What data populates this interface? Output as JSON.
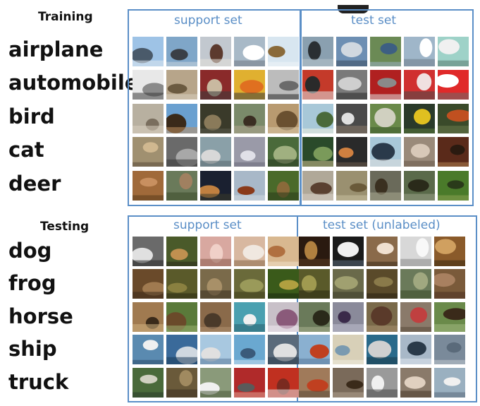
{
  "training": {
    "title": "Training",
    "classes": [
      "airplane",
      "automobile",
      "bird",
      "cat",
      "deer"
    ],
    "support_label": "support set",
    "test_label": "test set"
  },
  "testing": {
    "title": "Testing",
    "classes": [
      "dog",
      "frog",
      "horse",
      "ship",
      "truck"
    ],
    "support_label": "support set",
    "test_label": "test set   (unlabeled)"
  },
  "colors": {
    "box_border": "#5b8fc7",
    "box_label": "#5a8ec6",
    "class_label": "#111111"
  },
  "thumbnail_palettes": {
    "airplane": [
      [
        "#9ec3e6",
        "#4a5a6a",
        "#dfe7ee"
      ],
      [
        "#7fa6c8",
        "#3a3f46",
        "#c9d4dc"
      ],
      [
        "#c2c8cf",
        "#5c3a2e",
        "#e6e2da"
      ],
      [
        "#a8b9c7",
        "#ffffff",
        "#707a85"
      ],
      [
        "#d8e6f0",
        "#8a6a3a",
        "#f0f4f7"
      ],
      [
        "#8aa0b0",
        "#2a2f33",
        "#b8c4cc"
      ],
      [
        "#6d8fb3",
        "#d0d8e0",
        "#3c4e60"
      ],
      [
        "#6b8a55",
        "#3d5f82",
        "#9bb0c4"
      ],
      [
        "#9fb6c9",
        "#ffffff",
        "#6e7c88"
      ],
      [
        "#9ed2c8",
        "#f0f0f0",
        "#5a7a70"
      ]
    ],
    "automobile": [
      [
        "#e8e8e8",
        "#8a8a8a",
        "#3a3a3a"
      ],
      [
        "#b7a58a",
        "#6b5a40",
        "#d8d0c0"
      ],
      [
        "#8a2a2a",
        "#c9b9a0",
        "#3a3a3a"
      ],
      [
        "#e0b030",
        "#e07020",
        "#3a3a3a"
      ],
      [
        "#bcbcbc",
        "#6a6a6a",
        "#2a2a2a"
      ],
      [
        "#c43a2a",
        "#2a2a2a",
        "#e0e0e0"
      ],
      [
        "#7a7a7a",
        "#cfcfcf",
        "#2a2a2a"
      ],
      [
        "#b02020",
        "#8a8a8a",
        "#dcdcdc"
      ],
      [
        "#d03030",
        "#f0e0e0",
        "#4a4a4a"
      ],
      [
        "#e02a2a",
        "#ffffff",
        "#6a6a6a"
      ]
    ],
    "bird": [
      [
        "#b8b0a0",
        "#7a6e5e",
        "#d8d0c0"
      ],
      [
        "#6aa0d0",
        "#3a2a1a",
        "#c09060"
      ],
      [
        "#3a3a2a",
        "#8a7a5a",
        "#5a5a4a"
      ],
      [
        "#7a8a6a",
        "#3a2e22",
        "#b0a890"
      ],
      [
        "#b89a70",
        "#6a5030",
        "#d8c8a8"
      ],
      [
        "#a8c8d8",
        "#4a6a3a",
        "#f0f0e0"
      ],
      [
        "#4a4a4a",
        "#e0e0e0",
        "#8a7a6a"
      ],
      [
        "#6a8a4a",
        "#d0d0c0",
        "#3a5a2a"
      ],
      [
        "#2a3a2a",
        "#e0c020",
        "#5a7a3a"
      ],
      [
        "#3a4a2a",
        "#c05020",
        "#6a7a4a"
      ]
    ],
    "cat": [
      [
        "#a09070",
        "#d0b890",
        "#5a4a3a"
      ],
      [
        "#6a6a6a",
        "#a8a8a8",
        "#3a3a3a"
      ],
      [
        "#8aa0a8",
        "#d8d8d8",
        "#5a6a70"
      ],
      [
        "#9a9aa8",
        "#e0e0e8",
        "#6a6a78"
      ],
      [
        "#4a6a3a",
        "#a0b080",
        "#2a3a22"
      ],
      [
        "#2a4a2a",
        "#7a9a5a",
        "#d0c090"
      ],
      [
        "#2a2a2a",
        "#d08040",
        "#6a5a4a"
      ],
      [
        "#a8c8d8",
        "#2a3a4a",
        "#e0e0e0"
      ],
      [
        "#9a8a7a",
        "#d8c8b8",
        "#6a5a4a"
      ],
      [
        "#5a2a1a",
        "#2a1a10",
        "#b08050"
      ]
    ],
    "deer": [
      [
        "#a06a3a",
        "#c89060",
        "#5a3a1a"
      ],
      [
        "#6a7a5a",
        "#a08060",
        "#3a4a2a"
      ],
      [
        "#1a2030",
        "#c08040",
        "#3a3a2a"
      ],
      [
        "#a8b8c8",
        "#8a3a1a",
        "#d0d8e0"
      ],
      [
        "#4a6a2a",
        "#8a6a3a",
        "#2a3a1a"
      ],
      [
        "#b0a898",
        "#5a4030",
        "#d8d0c8"
      ],
      [
        "#9a9070",
        "#6a5a3a",
        "#c8c0a0"
      ],
      [
        "#6a6a5a",
        "#3a3020",
        "#a8a890"
      ],
      [
        "#5a6a4a",
        "#2a2a1a",
        "#9aa088"
      ],
      [
        "#4a7a2a",
        "#2a3a1a",
        "#8aa050"
      ]
    ],
    "dog": [
      [
        "#6a6a6a",
        "#e0e0e0",
        "#2a2a2a"
      ],
      [
        "#4a5a2a",
        "#c09050",
        "#2a2a1a"
      ],
      [
        "#d8a8a0",
        "#f0d0c8",
        "#8a5a4a"
      ],
      [
        "#d8b8a0",
        "#f0e8e0",
        "#8a6a4a"
      ],
      [
        "#d8b890",
        "#b07040",
        "#f0e0c8"
      ],
      [
        "#2a1a10",
        "#b08040",
        "#5a3a20"
      ],
      [
        "#1a1a1a",
        "#f0f0f0",
        "#5a6a7a"
      ],
      [
        "#8a6a4a",
        "#f0e0d0",
        "#3a2a1a"
      ],
      [
        "#d8d8d8",
        "#f8f8f8",
        "#8a8a8a"
      ],
      [
        "#8a5a2a",
        "#d0a060",
        "#3a2a10"
      ]
    ],
    "frog": [
      [
        "#6a4a2a",
        "#a07a50",
        "#3a2a1a"
      ],
      [
        "#5a5a2a",
        "#8a8040",
        "#2a2a10"
      ],
      [
        "#7a6a4a",
        "#a89068",
        "#3a3020"
      ],
      [
        "#6a6a3a",
        "#9a9a5a",
        "#3a3a1a"
      ],
      [
        "#3a5a1a",
        "#b0a040",
        "#1a2a10"
      ],
      [
        "#5a5a2a",
        "#a09a50",
        "#2a2a10"
      ],
      [
        "#6a6a4a",
        "#a0a070",
        "#3a3a2a"
      ],
      [
        "#5a4a2a",
        "#8a7a4a",
        "#2a2010"
      ],
      [
        "#6a7a5a",
        "#a0a880",
        "#3a4a2a"
      ],
      [
        "#7a5a3a",
        "#a88060",
        "#4a3020"
      ]
    ],
    "horse": [
      [
        "#a07a50",
        "#3a2a1a",
        "#d0b080"
      ],
      [
        "#5a7a3a",
        "#6a4a2a",
        "#9ab070"
      ],
      [
        "#8a6a4a",
        "#4a3a2a",
        "#b09070"
      ],
      [
        "#4aa0b0",
        "#f0f0f0",
        "#2a6070"
      ],
      [
        "#c8c0c8",
        "#8a5a7a",
        "#f0e8f0"
      ],
      [
        "#6a7a5a",
        "#2a2a1a",
        "#a8b090"
      ],
      [
        "#8a8a9a",
        "#3a2a4a",
        "#c0c0d0"
      ],
      [
        "#7a6a4a",
        "#5a3a2a",
        "#a89070"
      ],
      [
        "#8a7a6a",
        "#c04040",
        "#5a4a3a"
      ],
      [
        "#6a8a4a",
        "#3a2a1a",
        "#a0b880"
      ]
    ],
    "ship": [
      [
        "#5a8ab0",
        "#f0f0f0",
        "#2a4a6a"
      ],
      [
        "#3a6a9a",
        "#d0d8e0",
        "#1a3a5a"
      ],
      [
        "#a8c8e0",
        "#e0e0e0",
        "#5a7a9a"
      ],
      [
        "#6aa8d0",
        "#3a5a7a",
        "#c8e0f0"
      ],
      [
        "#5a6a7a",
        "#e0e0e0",
        "#2a3a4a"
      ],
      [
        "#8ab0d0",
        "#c04020",
        "#5a7a9a"
      ],
      [
        "#d8d0b8",
        "#7a9ab0",
        "#f0ece0"
      ],
      [
        "#2a6a8a",
        "#d0d0d0",
        "#1a3a4a"
      ],
      [
        "#a8b8c8",
        "#2a3a4a",
        "#e0e8f0"
      ],
      [
        "#7a8a9a",
        "#5a6a7a",
        "#c0c8d0"
      ]
    ],
    "truck": [
      [
        "#4a6a3a",
        "#d0d0c0",
        "#2a3a2a"
      ],
      [
        "#6a5a3a",
        "#a08a60",
        "#3a3020"
      ],
      [
        "#8a9a7a",
        "#f0f0f0",
        "#4a5a3a"
      ],
      [
        "#b02a2a",
        "#5a5a5a",
        "#e0a090"
      ],
      [
        "#c03020",
        "#7a2a20",
        "#e0e0e0"
      ],
      [
        "#a07a5a",
        "#c04020",
        "#5a4a3a"
      ],
      [
        "#7a6a5a",
        "#3a2a1a",
        "#b0a090"
      ],
      [
        "#9a9a9a",
        "#f0f0f0",
        "#4a4a4a"
      ],
      [
        "#8a7a6a",
        "#e0d0c0",
        "#4a3a2a"
      ],
      [
        "#9ab0c0",
        "#f0f0f0",
        "#5a6a7a"
      ]
    ]
  }
}
